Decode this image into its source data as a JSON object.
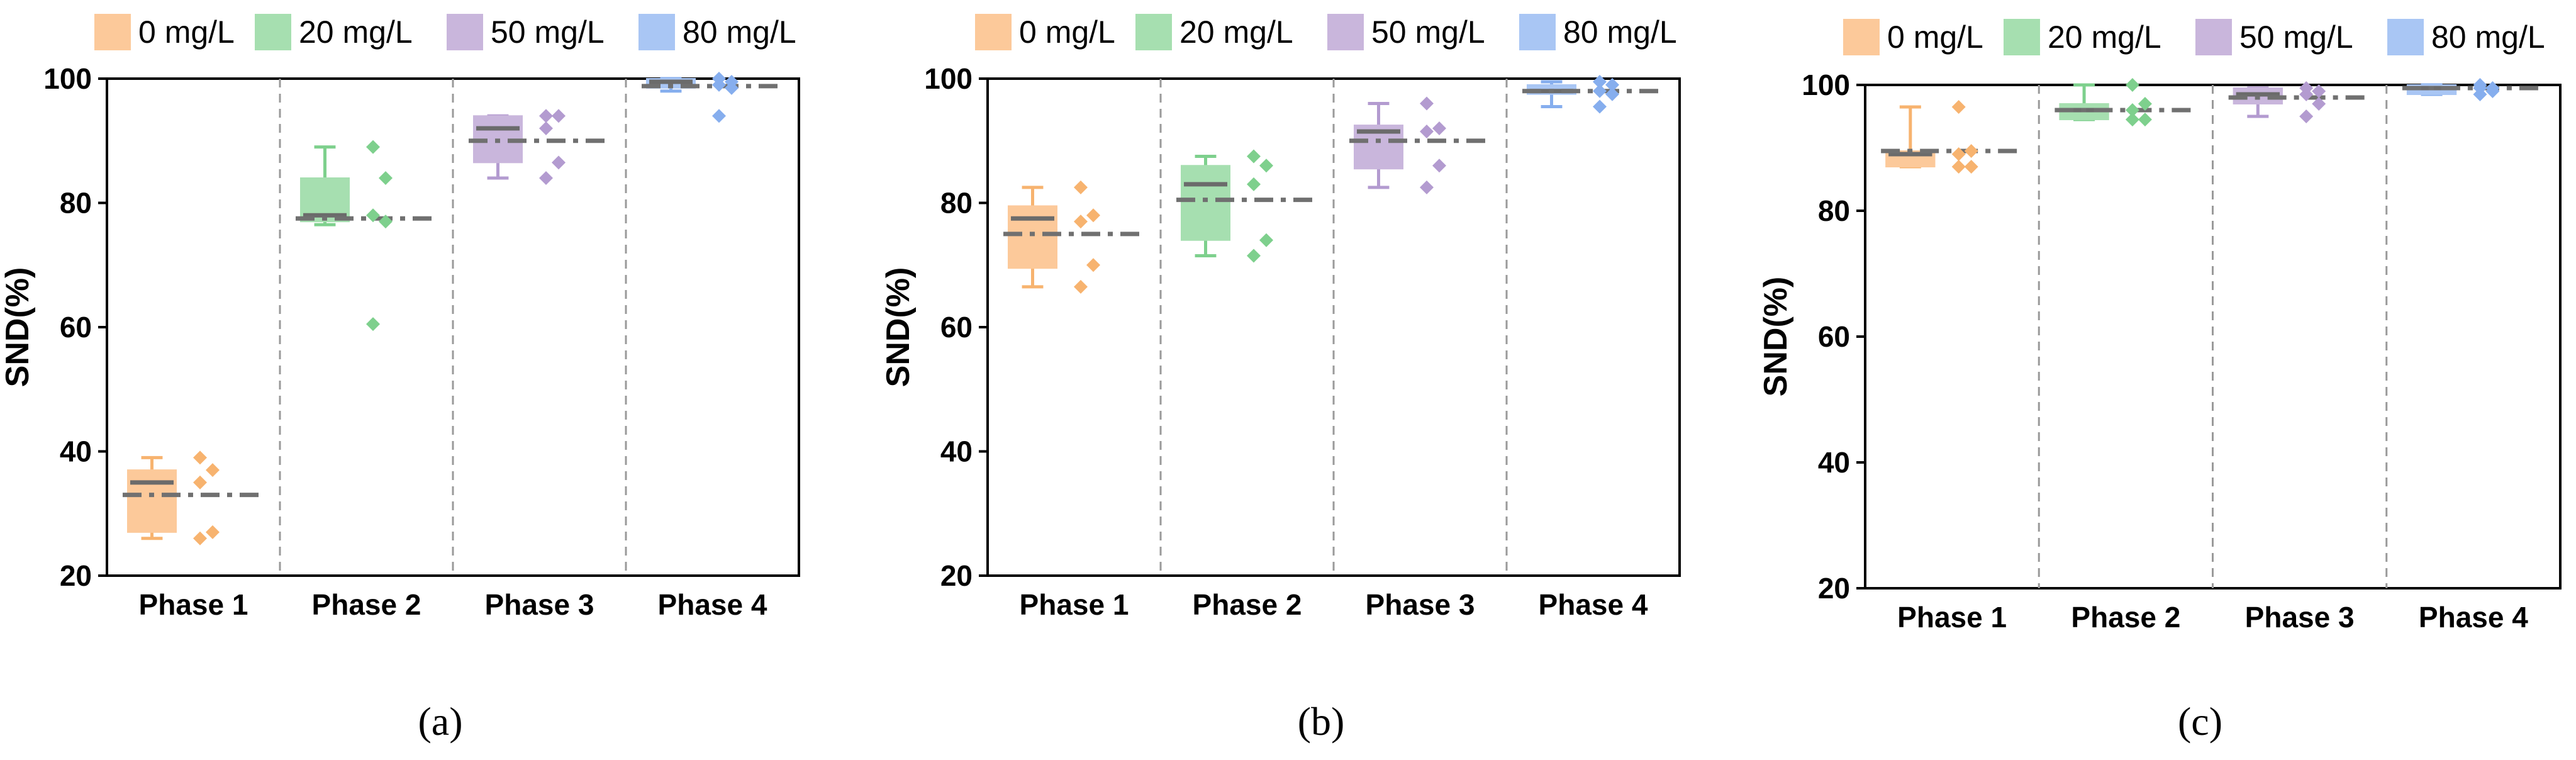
{
  "legend": [
    {
      "label": "0 mg/L",
      "color": "#fcc99a",
      "dark": "#f7b36f"
    },
    {
      "label": "20 mg/L",
      "color": "#a6dfb0",
      "dark": "#7ed08d"
    },
    {
      "label": "50 mg/L",
      "color": "#c9b6dc",
      "dark": "#b39bd0"
    },
    {
      "label": "80 mg/L",
      "color": "#a9c6f4",
      "dark": "#86aeee"
    }
  ],
  "chart_data": [
    {
      "type": "box",
      "caption": "(a)",
      "ylabel": "SND(%)",
      "ylim": [
        20,
        100
      ],
      "yticks": [
        20,
        40,
        60,
        80,
        100
      ],
      "categories": [
        "Phase 1",
        "Phase 2",
        "Phase 3",
        "Phase 4"
      ],
      "boxes": [
        {
          "series": "0 mg/L",
          "min": 26,
          "q1": 27,
          "median": 35,
          "mean": 33,
          "q3": 37,
          "max": 39,
          "points": [
            39,
            37,
            35,
            27,
            26
          ]
        },
        {
          "series": "20 mg/L",
          "min": 76.5,
          "q1": 77,
          "median": 78,
          "mean": 77.5,
          "q3": 84,
          "max": 89,
          "points": [
            89,
            84,
            78,
            77,
            60.5
          ]
        },
        {
          "series": "50 mg/L",
          "min": 84,
          "q1": 86.5,
          "median": 92,
          "mean": 90,
          "q3": 94,
          "max": 94,
          "points": [
            94,
            94,
            92,
            86.5,
            84
          ]
        },
        {
          "series": "80 mg/L",
          "min": 98,
          "q1": 98.5,
          "median": 99.5,
          "mean": 98.8,
          "q3": 100,
          "max": 100,
          "points": [
            100,
            99.5,
            99,
            98.5,
            94
          ]
        }
      ]
    },
    {
      "type": "box",
      "caption": "(b)",
      "ylabel": "SND(%)",
      "ylim": [
        20,
        100
      ],
      "yticks": [
        20,
        40,
        60,
        80,
        100
      ],
      "categories": [
        "Phase 1",
        "Phase 2",
        "Phase 3",
        "Phase 4"
      ],
      "boxes": [
        {
          "series": "0 mg/L",
          "min": 66.5,
          "q1": 69.5,
          "median": 77.5,
          "mean": 75,
          "q3": 79.5,
          "max": 82.5,
          "points": [
            82.5,
            78,
            77,
            70,
            66.5
          ]
        },
        {
          "series": "20 mg/L",
          "min": 71.5,
          "q1": 74,
          "median": 83,
          "mean": 80.5,
          "q3": 86,
          "max": 87.5,
          "points": [
            87.5,
            86,
            83,
            74,
            71.5
          ]
        },
        {
          "series": "50 mg/L",
          "min": 82.5,
          "q1": 85.5,
          "median": 91.5,
          "mean": 90,
          "q3": 92.5,
          "max": 96,
          "points": [
            96,
            92,
            91.5,
            86,
            82.5
          ]
        },
        {
          "series": "80 mg/L",
          "min": 95.5,
          "q1": 97.5,
          "median": 98,
          "mean": 98,
          "q3": 99,
          "max": 99.5,
          "points": [
            99.5,
            99,
            98,
            97.5,
            95.5
          ]
        }
      ]
    },
    {
      "type": "box",
      "caption": "(c)",
      "ylabel": "SND(%)",
      "ylim": [
        20,
        100
      ],
      "yticks": [
        20,
        40,
        60,
        80,
        100
      ],
      "categories": [
        "Phase 1",
        "Phase 2",
        "Phase 3",
        "Phase 4"
      ],
      "boxes": [
        {
          "series": "0 mg/L",
          "min": 87,
          "q1": 87,
          "median": 89,
          "mean": 89.5,
          "q3": 89.5,
          "max": 96.5,
          "points": [
            96.5,
            89.5,
            89,
            87,
            87
          ]
        },
        {
          "series": "20 mg/L",
          "min": 94.5,
          "q1": 94.5,
          "median": 96,
          "mean": 96,
          "q3": 97,
          "max": 100,
          "points": [
            100,
            97,
            96,
            94.5,
            94.5
          ]
        },
        {
          "series": "50 mg/L",
          "min": 95,
          "q1": 97,
          "median": 98.5,
          "mean": 98,
          "q3": 99.5,
          "max": 99.5,
          "points": [
            99.5,
            99,
            98.5,
            97,
            95
          ]
        },
        {
          "series": "80 mg/L",
          "min": 98.5,
          "q1": 98.5,
          "median": 99.5,
          "mean": 99.5,
          "q3": 100,
          "max": 100,
          "points": [
            100,
            99.5,
            99.5,
            99,
            98.5
          ]
        }
      ]
    }
  ]
}
